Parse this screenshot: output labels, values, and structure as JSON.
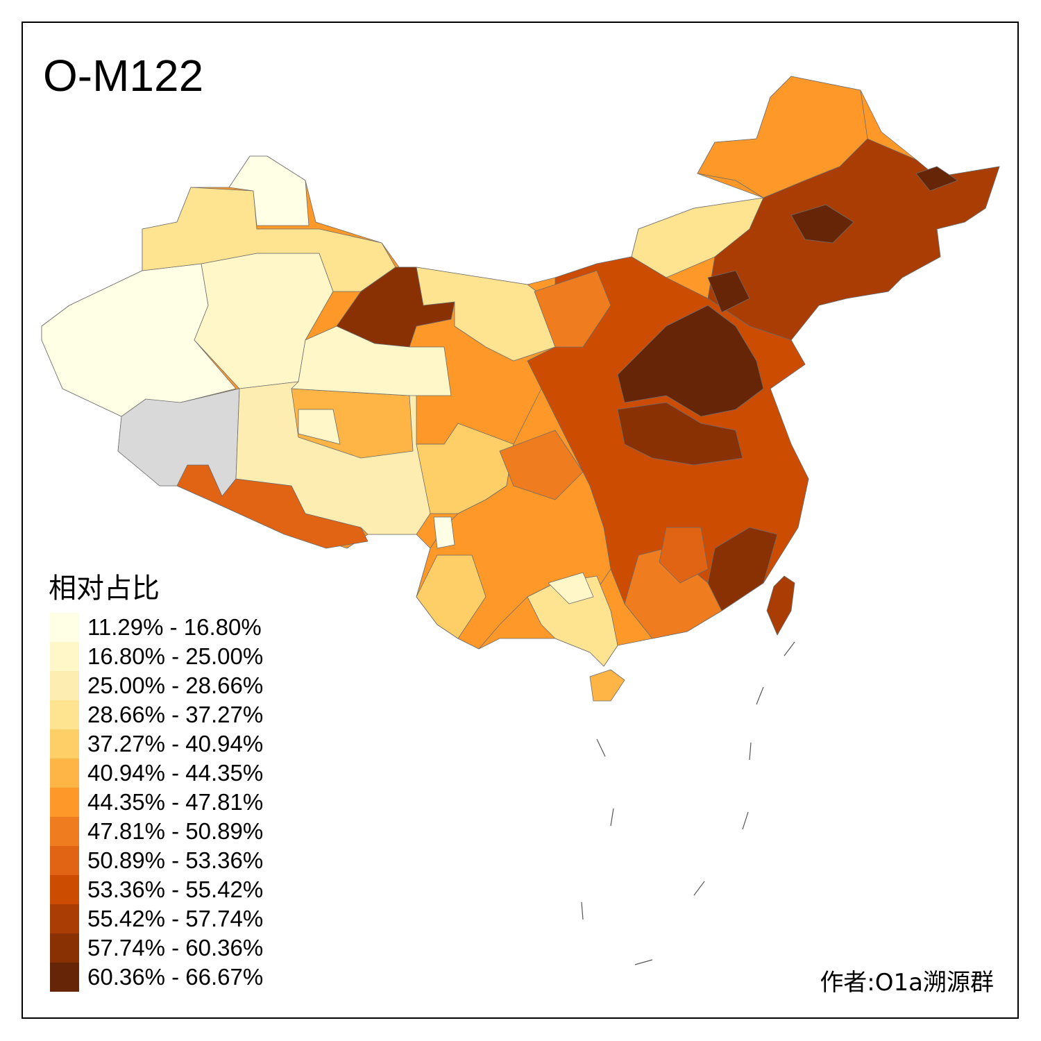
{
  "title": "O-M122",
  "legend": {
    "title": "相对占比",
    "classes": [
      {
        "label": "11.29% - 16.80%",
        "color": "#FFFFE5"
      },
      {
        "label": "16.80% - 25.00%",
        "color": "#FFF7C8"
      },
      {
        "label": "25.00% - 28.66%",
        "color": "#FEEDB0"
      },
      {
        "label": "28.66% - 37.27%",
        "color": "#FEE391"
      },
      {
        "label": "37.27% - 40.94%",
        "color": "#FECF66"
      },
      {
        "label": "40.94% - 44.35%",
        "color": "#FEB545"
      },
      {
        "label": "44.35% - 47.81%",
        "color": "#FE9929"
      },
      {
        "label": "47.81% - 50.89%",
        "color": "#EF7D1F"
      },
      {
        "label": "50.89% - 53.36%",
        "color": "#E16314"
      },
      {
        "label": "53.36% - 55.42%",
        "color": "#CC4C02"
      },
      {
        "label": "55.42% - 57.74%",
        "color": "#AA3D03"
      },
      {
        "label": "57.74% - 60.36%",
        "color": "#8A3104"
      },
      {
        "label": "60.36% - 66.67%",
        "color": "#662506"
      }
    ],
    "no_data_color": "#D9D9D9"
  },
  "author": "作者:O1a溯源群"
}
